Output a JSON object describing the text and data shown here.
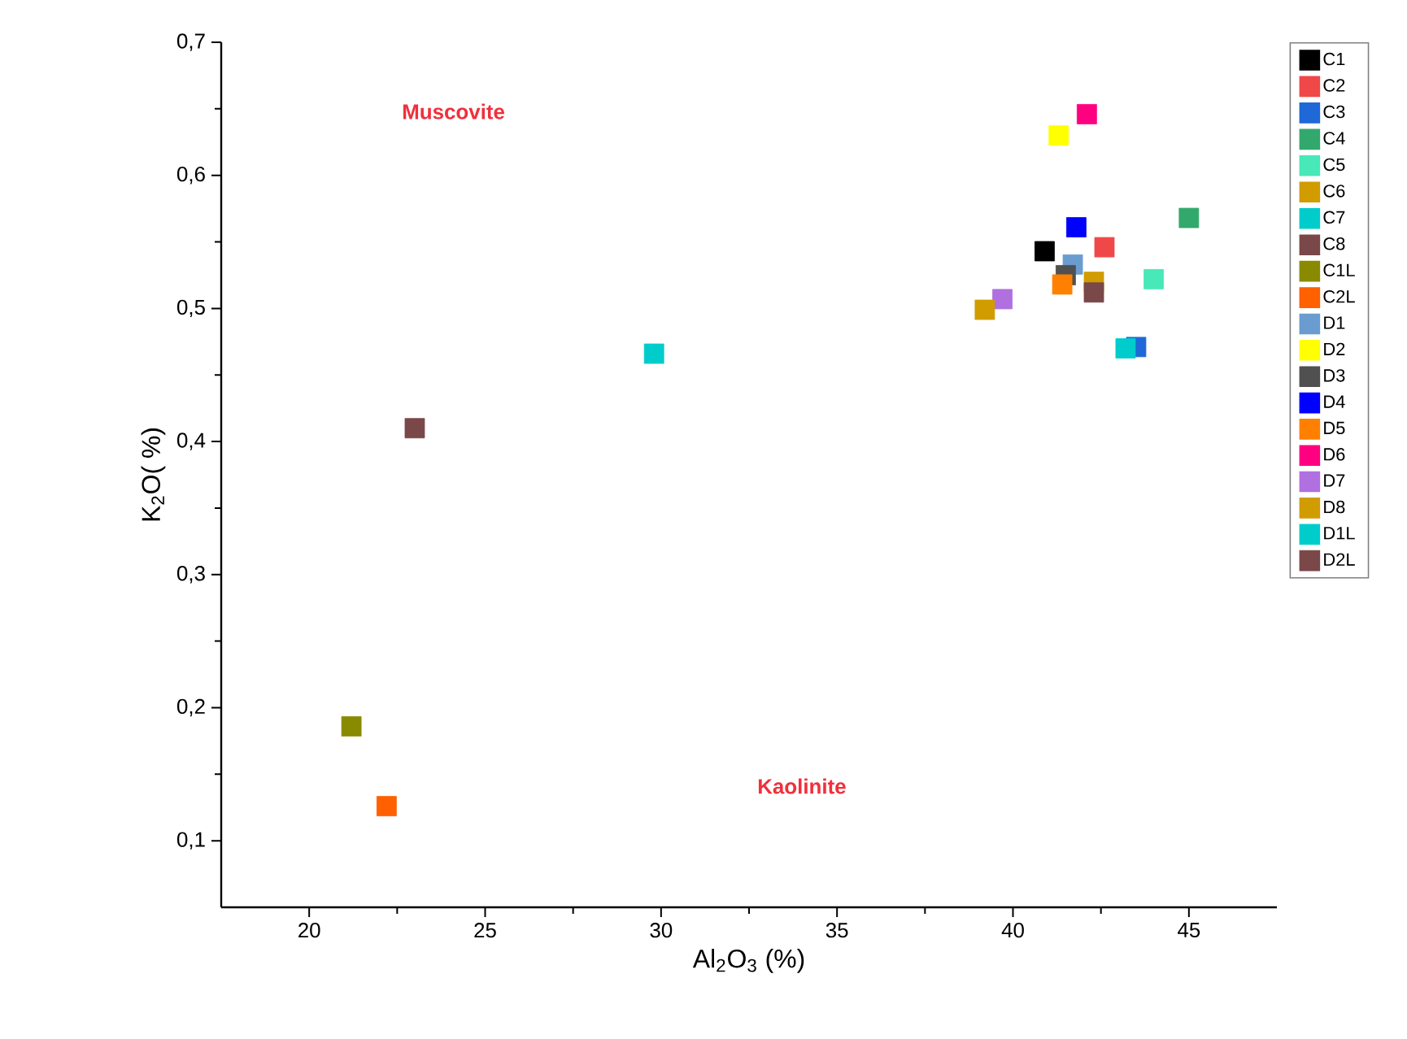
{
  "chart_data": {
    "type": "scatter",
    "xlabel": "Al$_{2}$O$_{3}$ (%)",
    "ylabel": "K$_{2}$O( %)",
    "annotations": [
      "Muscovite",
      "Kaolinite"
    ],
    "marker": "square",
    "legend": "right",
    "xlim": [
      17.5,
      47.5
    ],
    "xticks": [
      20,
      25,
      30,
      35,
      40,
      45
    ],
    "ylim": [
      0.05,
      0.7
    ],
    "yticks": [
      {
        "value": 0.1,
        "label": "0,1"
      },
      {
        "value": 0.2,
        "label": "0,2"
      },
      {
        "value": 0.3,
        "label": "0,3"
      },
      {
        "value": 0.4,
        "label": "0,4"
      },
      {
        "value": 0.5,
        "label": "0,5"
      },
      {
        "value": 0.6,
        "label": "0,6"
      },
      {
        "value": 0.7,
        "label": "0,7"
      }
    ],
    "series": [
      {
        "name": "C1",
        "color": "#000000",
        "x": [
          40.9
        ],
        "values": [
          0.543
        ]
      },
      {
        "name": "C2",
        "color": "#f04848",
        "x": [
          42.6
        ],
        "values": [
          0.546
        ]
      },
      {
        "name": "C3",
        "color": "#1f68d8",
        "x": [
          43.5
        ],
        "values": [
          0.471
        ]
      },
      {
        "name": "C4",
        "color": "#33a86c",
        "x": [
          45.0
        ],
        "values": [
          0.568
        ]
      },
      {
        "name": "C5",
        "color": "#48e8b8",
        "x": [
          44.0
        ],
        "values": [
          0.522
        ]
      },
      {
        "name": "C6",
        "color": "#d09c00",
        "x": [
          42.3
        ],
        "values": [
          0.52
        ]
      },
      {
        "name": "C7",
        "color": "#00cccc",
        "x": [
          29.8
        ],
        "values": [
          0.466
        ]
      },
      {
        "name": "C8",
        "color": "#7a4848",
        "x": [
          42.3
        ],
        "values": [
          0.512
        ]
      },
      {
        "name": "C1L",
        "color": "#8a8a00",
        "x": [
          21.2
        ],
        "values": [
          0.186
        ]
      },
      {
        "name": "C2L",
        "color": "#ff6000",
        "x": [
          22.2
        ],
        "values": [
          0.126
        ]
      },
      {
        "name": "D1",
        "color": "#6a9cd0",
        "x": [
          41.7
        ],
        "values": [
          0.533
        ]
      },
      {
        "name": "D2",
        "color": "#ffff00",
        "x": [
          41.3
        ],
        "values": [
          0.63
        ]
      },
      {
        "name": "D3",
        "color": "#505050",
        "x": [
          41.5
        ],
        "values": [
          0.525
        ]
      },
      {
        "name": "D4",
        "color": "#0000ff",
        "x": [
          41.8
        ],
        "values": [
          0.561
        ]
      },
      {
        "name": "D5",
        "color": "#ff8000",
        "x": [
          41.4
        ],
        "values": [
          0.518
        ]
      },
      {
        "name": "D6",
        "color": "#ff0080",
        "x": [
          42.1
        ],
        "values": [
          0.646
        ]
      },
      {
        "name": "D7",
        "color": "#b070e0",
        "x": [
          39.7
        ],
        "values": [
          0.507
        ]
      },
      {
        "name": "D8",
        "color": "#d09c00",
        "x": [
          39.2
        ],
        "values": [
          0.499
        ]
      },
      {
        "name": "D1L",
        "color": "#00cccc",
        "x": [
          43.2
        ],
        "values": [
          0.47
        ]
      },
      {
        "name": "D2L",
        "color": "#7a4848",
        "x": [
          23.0
        ],
        "values": [
          0.41
        ]
      }
    ]
  }
}
